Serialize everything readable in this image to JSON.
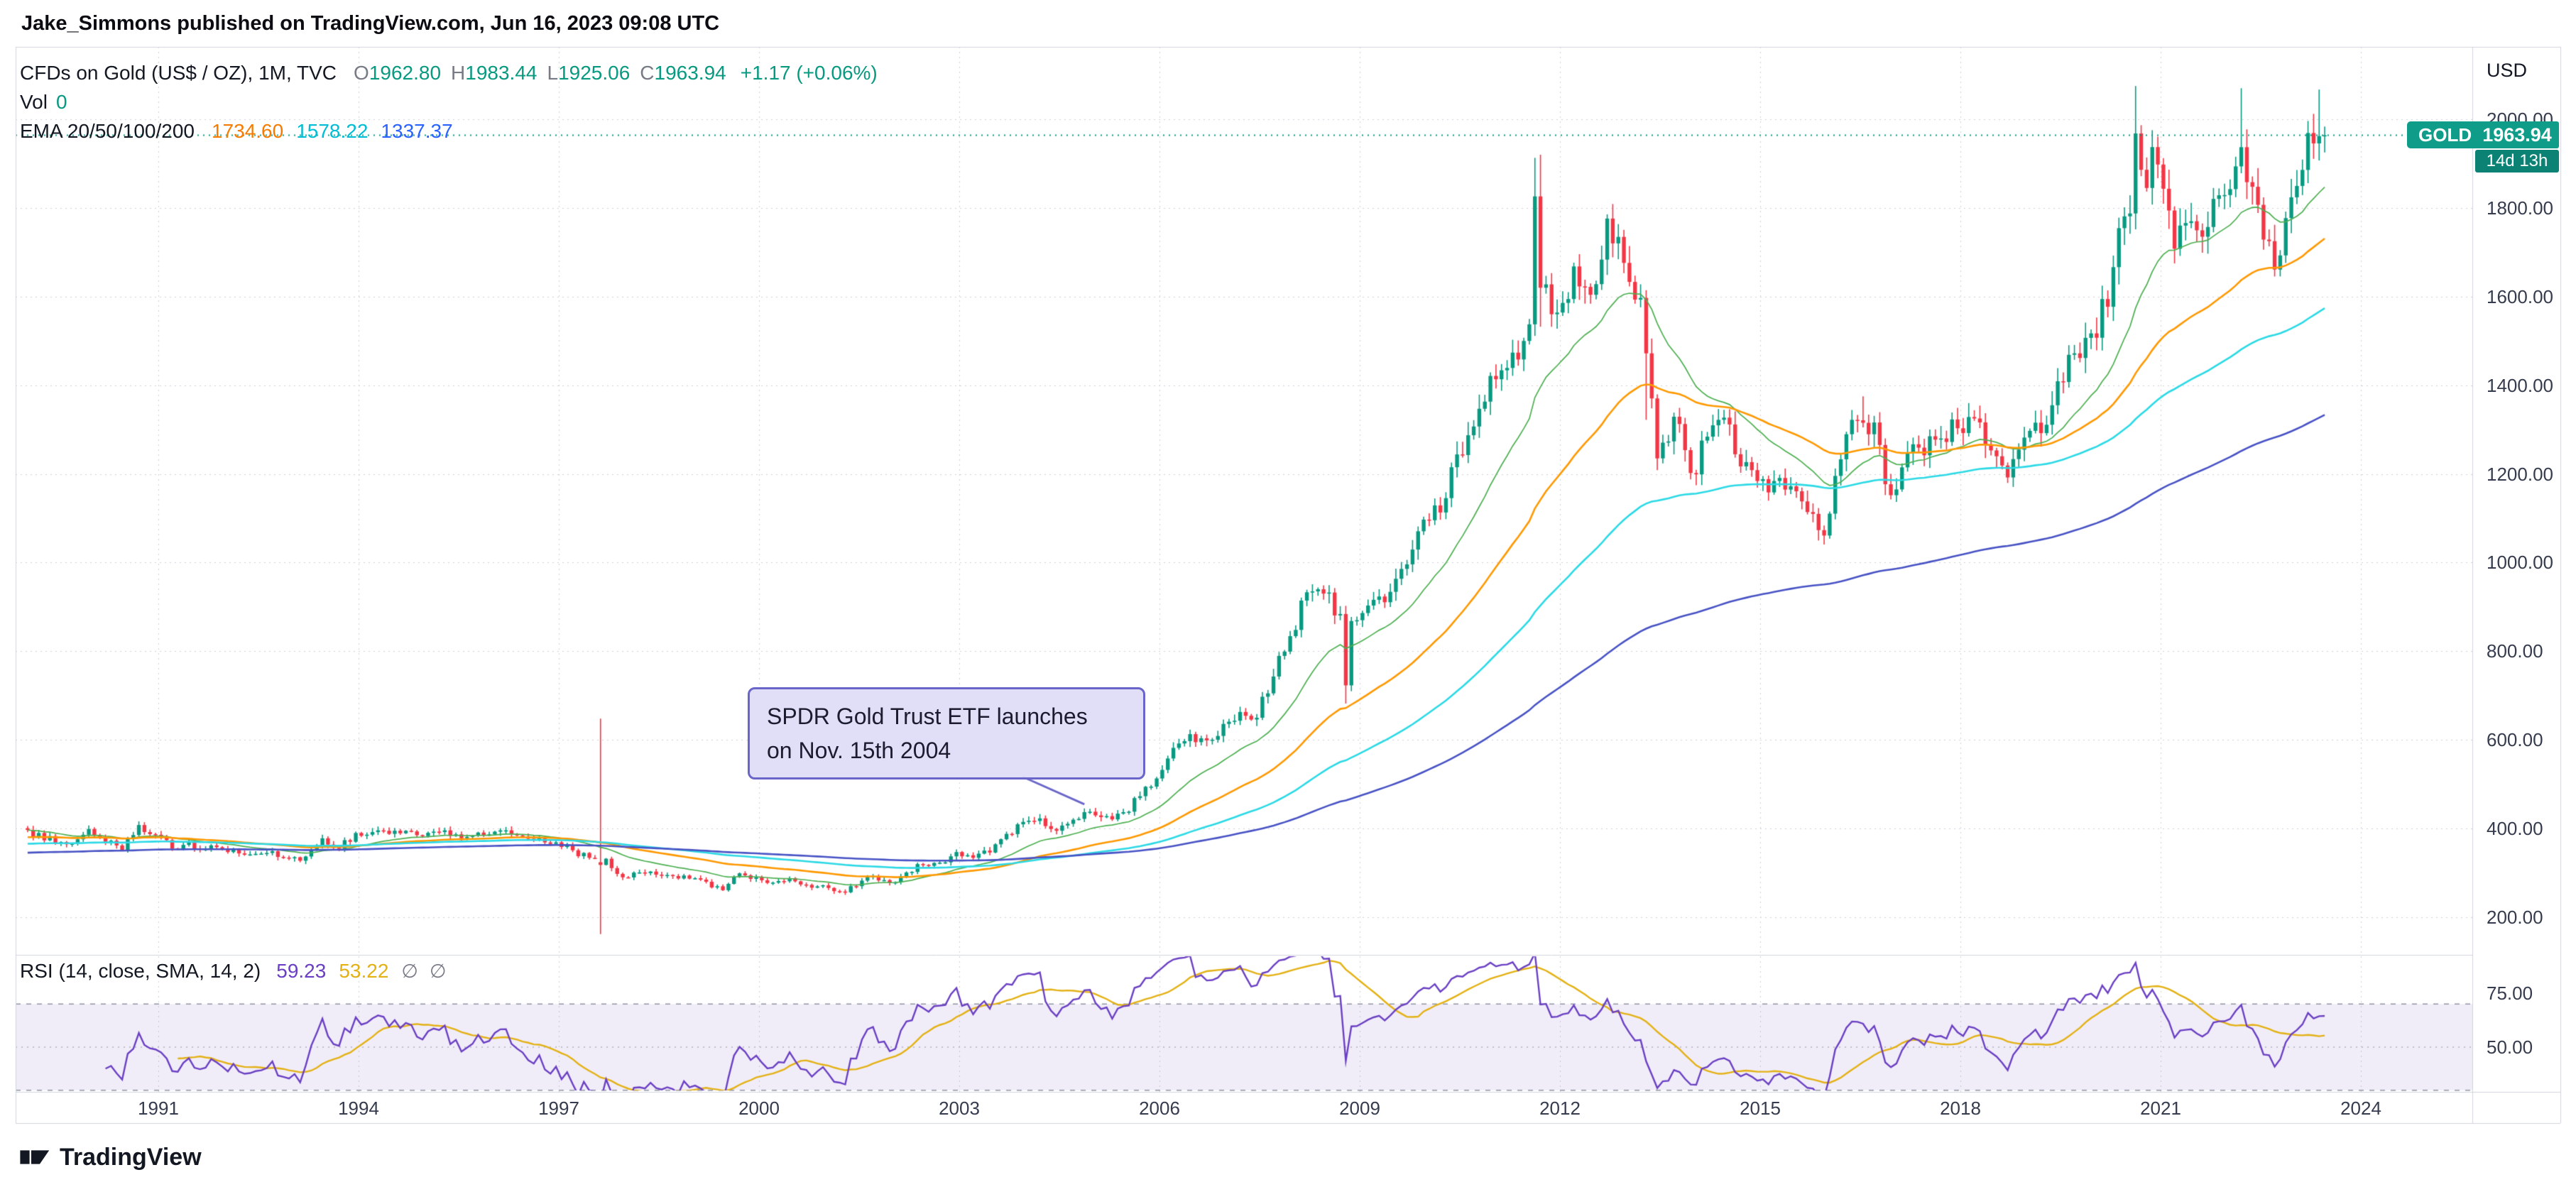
{
  "header": {
    "author": "Jake_Simmons",
    "rest": " published on TradingView.com, Jun 16, 2023 09:08 UTC"
  },
  "legend": {
    "symbol_title": "CFDs on Gold (US$ / OZ), 1M, TVC",
    "ohlc": [
      {
        "label": "O",
        "value": "1962.80"
      },
      {
        "label": "H",
        "value": "1983.44"
      },
      {
        "label": "L",
        "value": "1925.06"
      },
      {
        "label": "C",
        "value": "1963.94"
      }
    ],
    "change": "+1.17 (+0.06%)",
    "vol_label": "Vol",
    "vol_value": "0",
    "ema_label": "EMA 20/50/100/200",
    "ema_values": [
      {
        "value": "1734.60",
        "color": "#f57c00"
      },
      {
        "value": "1578.22",
        "color": "#00bcd4"
      },
      {
        "value": "1337.37",
        "color": "#2962ff"
      }
    ]
  },
  "price_axis": {
    "currency": "USD"
  },
  "price_label": {
    "symbol": "GOLD",
    "price": "1963.94",
    "countdown": "14d 13h"
  },
  "annotation": {
    "line1": "SPDR Gold Trust ETF launches",
    "line2": "on Nov. 15th 2004"
  },
  "rsi_legend": {
    "title": "RSI (14, close, SMA, 14, 2)",
    "value": "59.23",
    "sma_value": "53.22",
    "empty1": "∅",
    "empty2": "∅"
  },
  "footer": {
    "brand": "TradingView"
  },
  "colors": {
    "text": "#131722",
    "muted": "#787b86",
    "accent_teal": "#089981",
    "grid": "#cdd0da",
    "frame": "#d1d4dc",
    "badge": "#0f9d8a",
    "badge_dark": "#0b8273",
    "rsi_line": "#6a3fc3",
    "rsi_sma": "#e3b114",
    "rsi_band_fill": "rgba(126,87,194,0.11)",
    "annotation_border": "#6a66c9"
  },
  "chart_data": {
    "type": "candlestick",
    "title": "CFDs on Gold (US$ / OZ), 1M, TVC",
    "symbol": "GOLD",
    "timeframe": "1M",
    "exchange": "TVC",
    "currency": "USD",
    "last_bar": {
      "open": 1962.8,
      "high": 1983.44,
      "low": 1925.06,
      "close": 1963.94,
      "change": 1.17,
      "change_pct": 0.06
    },
    "xlim": [
      1989.0,
      2025.7
    ],
    "ylim": [
      115,
      2160
    ],
    "x_axis": {
      "tick_years": [
        1991,
        1994,
        1997,
        2000,
        2003,
        2006,
        2009,
        2012,
        2015,
        2018,
        2021,
        2024
      ]
    },
    "y_axis": {
      "ticks": [
        200,
        400,
        600,
        800,
        1000,
        1200,
        1400,
        1600,
        1800,
        2000
      ],
      "currency": "USD"
    },
    "series_start": "1989-Q1",
    "series_end": "2023-Q2",
    "quarterly_closes": [
      390,
      368,
      366,
      399,
      370,
      352,
      408,
      386,
      355,
      368,
      354,
      353,
      344,
      343,
      349,
      333,
      337,
      378,
      355,
      390,
      392,
      388,
      395,
      383,
      392,
      387,
      384,
      387,
      396,
      382,
      379,
      369,
      351,
      334,
      332,
      290,
      301,
      296,
      293,
      287,
      280,
      261,
      299,
      290,
      278,
      288,
      273,
      272,
      258,
      270,
      293,
      277,
      301,
      318,
      323,
      347,
      334,
      346,
      388,
      415,
      423,
      395,
      420,
      438,
      428,
      437,
      473,
      513,
      582,
      613,
      599,
      636,
      663,
      650,
      743,
      834,
      933,
      930,
      884,
      870,
      916,
      934,
      996,
      1097,
      1113,
      1244,
      1307,
      1421,
      1439,
      1500,
      1620,
      1564,
      1668,
      1604,
      1776,
      1676,
      1597,
      1235,
      1329,
      1202,
      1284,
      1327,
      1217,
      1184,
      1184,
      1172,
      1114,
      1061,
      1233,
      1321,
      1316,
      1152,
      1249,
      1242,
      1280,
      1303,
      1325,
      1253,
      1192,
      1282,
      1292,
      1409,
      1472,
      1517,
      1577,
      1781,
      1886,
      1898,
      1708,
      1770,
      1757,
      1829,
      1937,
      1807,
      1661,
      1824,
      1969,
      1964
    ],
    "overrides": [
      {
        "ym": "1997-08",
        "open": 324,
        "close": 318,
        "high": 648,
        "low": 162
      },
      {
        "ym": "2008-10",
        "close": 723,
        "low": 682
      },
      {
        "ym": "2011-08",
        "close": 1826,
        "high": 1913
      },
      {
        "ym": "2011-09",
        "close": 1620,
        "high": 1920,
        "low": 1532
      },
      {
        "ym": "2013-04",
        "close": 1472,
        "low": 1322
      },
      {
        "ym": "2016-07",
        "high": 1375
      },
      {
        "ym": "2020-08",
        "close": 1968,
        "high": 2075
      },
      {
        "ym": "2022-03",
        "close": 1937,
        "high": 2070
      },
      {
        "ym": "2023-05",
        "close": 1962,
        "high": 2067
      },
      {
        "ym": "2023-06",
        "open": 1962.8,
        "high": 1983.44,
        "low": 1925.06,
        "close": 1963.94
      }
    ],
    "colors": {
      "up": "#089981",
      "down": "#f23645"
    },
    "emas": [
      {
        "period": 20,
        "color": "#4caf50",
        "value": null
      },
      {
        "period": 50,
        "color": "#ff9800",
        "value": 1734.6
      },
      {
        "period": 100,
        "color": "#2bd9e5",
        "value": 1578.22
      },
      {
        "period": 200,
        "color": "#4752c4",
        "value": 1337.37
      }
    ],
    "rsi": {
      "length": 14,
      "source": "close",
      "smoothing": "SMA",
      "smoothing_length": 14,
      "value": 59.23,
      "sma_value": 53.22,
      "bands": [
        70,
        50,
        30
      ],
      "axis_ticks": [
        75,
        50
      ]
    },
    "last_price_line": 1963.94,
    "annotation_target": {
      "year_decimal": 2004.875,
      "price": 455,
      "event": "SPDR Gold Trust ETF launch, Nov 15 2004"
    }
  }
}
